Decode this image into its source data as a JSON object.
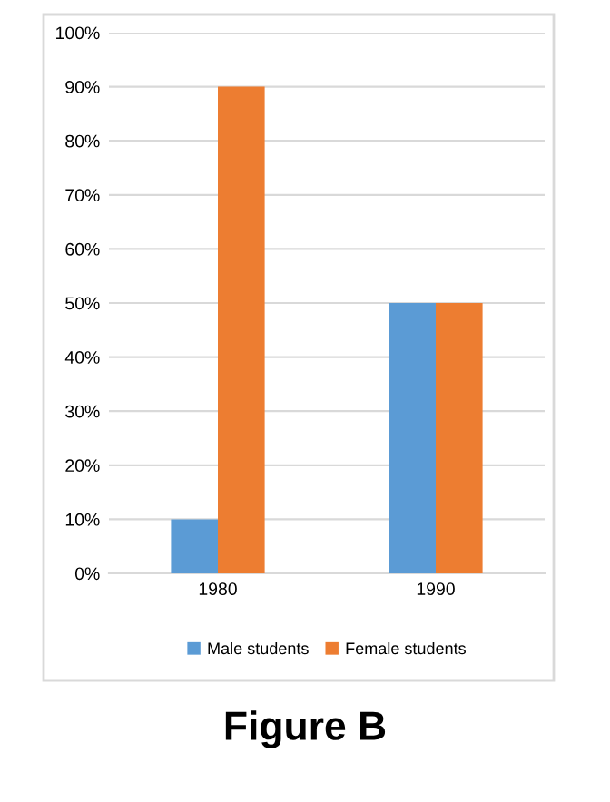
{
  "chart_data": {
    "type": "bar",
    "categories": [
      "1980",
      "1990"
    ],
    "series": [
      {
        "name": "Male students",
        "color": "#5b9bd5",
        "values": [
          10,
          50
        ]
      },
      {
        "name": "Female students",
        "color": "#ed7d31",
        "values": [
          90,
          50
        ]
      }
    ],
    "ylim": [
      0,
      100
    ],
    "yticks": [
      {
        "value": 0,
        "label": "0%"
      },
      {
        "value": 10,
        "label": "10%"
      },
      {
        "value": 20,
        "label": "20%"
      },
      {
        "value": 30,
        "label": "30%"
      },
      {
        "value": 40,
        "label": "40%"
      },
      {
        "value": 50,
        "label": "50%"
      },
      {
        "value": 60,
        "label": "60%"
      },
      {
        "value": 70,
        "label": "70%"
      },
      {
        "value": 80,
        "label": "80%"
      },
      {
        "value": 90,
        "label": "90%"
      },
      {
        "value": 100,
        "label": "100%"
      }
    ],
    "grid": "y",
    "legend": "bottom",
    "annotations": [
      "Figure B"
    ]
  }
}
